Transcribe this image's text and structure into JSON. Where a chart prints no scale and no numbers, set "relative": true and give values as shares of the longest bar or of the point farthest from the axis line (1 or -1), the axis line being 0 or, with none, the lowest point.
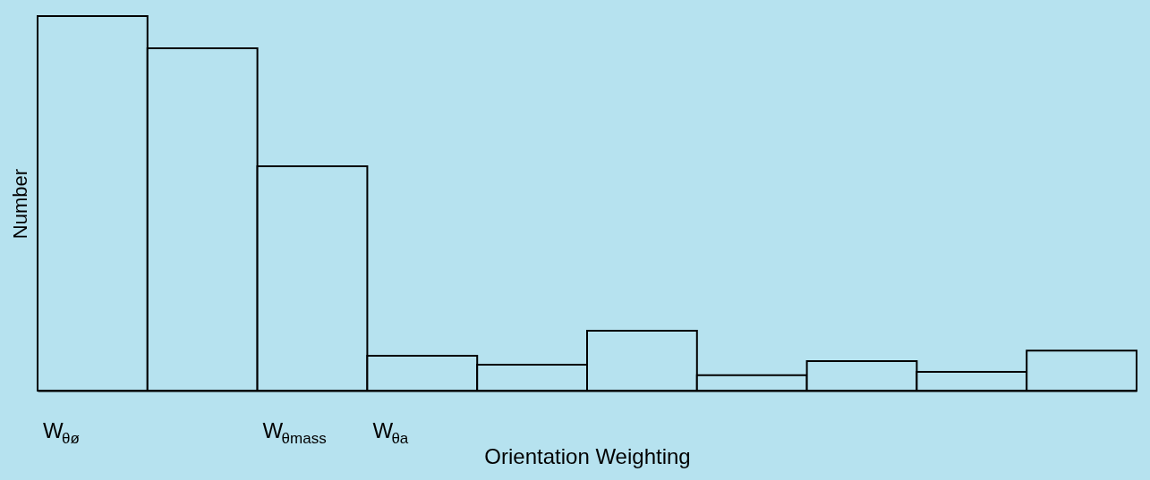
{
  "chart_data": {
    "type": "bar",
    "relative": true,
    "categories": [
      "W$_{θø}$",
      null,
      "W$_{θmass}$",
      "W$_{θa}$",
      null,
      null,
      null,
      null,
      null,
      null
    ],
    "values": [
      1,
      0.914,
      0.599,
      0.093,
      0.069,
      0.16,
      0.041,
      0.079,
      0.05,
      0.107
    ],
    "color": "#b6e2ef",
    "xlabel": "Orientation Weighting",
    "ylabel": "Number"
  }
}
